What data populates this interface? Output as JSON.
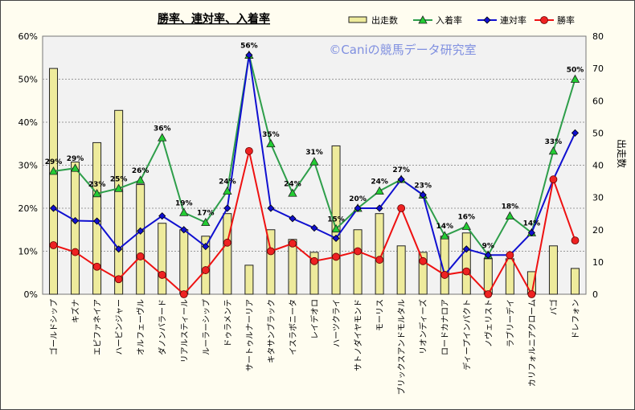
{
  "chart_data": {
    "type": "bar",
    "title": "勝率、連対率、入着率",
    "watermark": "©Caniの競馬データ研究室",
    "ylabel_right": "出走数",
    "ylim_left": [
      0,
      60
    ],
    "ylim_right": [
      0,
      80
    ],
    "left_ticks": [
      "0%",
      "10%",
      "20%",
      "30%",
      "40%",
      "50%",
      "60%"
    ],
    "right_ticks": [
      "0",
      "10",
      "20",
      "30",
      "40",
      "50",
      "60",
      "70",
      "80"
    ],
    "grid": true,
    "legend_position": "top-right",
    "categories": [
      "ゴールドシップ",
      "キズナ",
      "エピファネイア",
      "ハービンジャー",
      "オルフェーヴル",
      "ダノンバラード",
      "リアルスティール",
      "ルーラーシップ",
      "ドゥラメンテ",
      "サートゥルナーリア",
      "キタサンブラック",
      "イスラボニータ",
      "レイデオロ",
      "ハーツクライ",
      "サトノダイヤモンド",
      "モーリス",
      "ブリックスアンドモルタル",
      "リオンディーズ",
      "ロードカナロア",
      "ディープインパクト",
      "ノヴェリスト",
      "ラブリーデイ",
      "カリフォルニアクローム",
      "バゴ",
      "ドレフォン"
    ],
    "series": [
      {
        "name": "出走数",
        "type": "bar",
        "axis": "right",
        "color": "#eeeb9c",
        "values": [
          70,
          41,
          47,
          57,
          34,
          22,
          20,
          18,
          25,
          9,
          20,
          17,
          13,
          46,
          20,
          25,
          15,
          13,
          18,
          19,
          11,
          11,
          7,
          15,
          8
        ]
      },
      {
        "name": "入着率",
        "type": "line",
        "axis": "left",
        "color": "#2e9e4a",
        "marker": "triangle",
        "values": [
          28.6,
          29.3,
          23.4,
          24.6,
          26.5,
          36.4,
          19.0,
          16.7,
          24.0,
          55.6,
          35.0,
          23.5,
          30.8,
          15.2,
          20.0,
          24.0,
          26.7,
          23.1,
          13.6,
          15.8,
          9.1,
          18.2,
          14.3,
          33.3,
          50.0
        ],
        "labels": [
          "29%",
          "29%",
          "23%",
          "25%",
          "26%",
          "36%",
          "19%",
          "17%",
          "24%",
          "56%",
          "35%",
          "24%",
          "31%",
          "15%",
          "20%",
          "24%",
          "27%",
          "23%",
          "14%",
          "16%",
          "9%",
          "18%",
          "14%",
          "33%",
          "50%"
        ]
      },
      {
        "name": "連対率",
        "type": "line",
        "axis": "left",
        "color": "#1010d0",
        "marker": "diamond",
        "values": [
          20.0,
          17.1,
          17.0,
          10.5,
          14.7,
          18.2,
          15.0,
          11.1,
          20.0,
          55.6,
          20.0,
          17.6,
          15.4,
          13.0,
          20.0,
          20.0,
          26.7,
          23.1,
          4.5,
          10.5,
          9.1,
          9.1,
          14.3,
          26.7,
          37.5
        ]
      },
      {
        "name": "勝率",
        "type": "line",
        "axis": "left",
        "color": "#ee1111",
        "marker": "circle",
        "values": [
          11.4,
          9.8,
          6.4,
          3.5,
          8.8,
          4.5,
          0.0,
          5.6,
          12.0,
          33.3,
          10.0,
          11.8,
          7.7,
          8.7,
          10.0,
          8.0,
          20.0,
          7.7,
          4.5,
          5.3,
          0.0,
          9.1,
          0.0,
          26.7,
          12.5
        ]
      }
    ]
  }
}
